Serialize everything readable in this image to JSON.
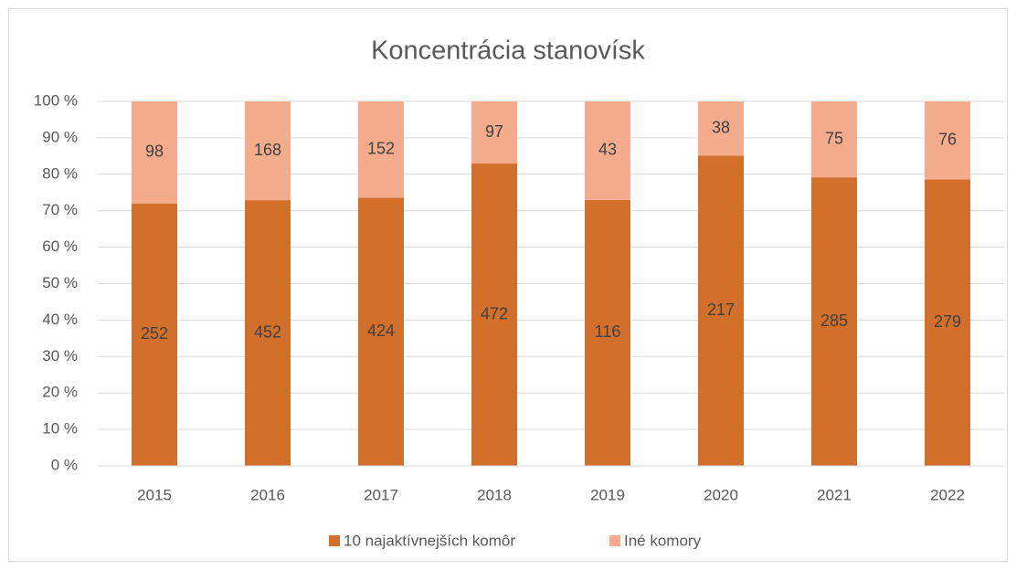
{
  "chart_data": {
    "type": "bar",
    "stacking": "percent",
    "title": "Koncentrácia stanovísk",
    "categories": [
      "2015",
      "2016",
      "2017",
      "2018",
      "2019",
      "2020",
      "2021",
      "2022"
    ],
    "series": [
      {
        "name": "10 najaktívnejších komôr",
        "color": "#d2702b",
        "values": [
          252,
          452,
          424,
          472,
          116,
          217,
          285,
          279
        ]
      },
      {
        "name": "Iné komory",
        "color": "#f4ac8d",
        "values": [
          98,
          168,
          152,
          97,
          43,
          38,
          75,
          76
        ]
      }
    ],
    "ylim": [
      0,
      100
    ],
    "yticks": [
      {
        "value": 0,
        "label": "0 %"
      },
      {
        "value": 10,
        "label": "10 %"
      },
      {
        "value": 20,
        "label": "20 %"
      },
      {
        "value": 30,
        "label": "30 %"
      },
      {
        "value": 40,
        "label": "40 %"
      },
      {
        "value": 50,
        "label": "50 %"
      },
      {
        "value": 60,
        "label": "60 %"
      },
      {
        "value": 70,
        "label": "70 %"
      },
      {
        "value": 80,
        "label": "80 %"
      },
      {
        "value": 90,
        "label": "90 %"
      },
      {
        "value": 100,
        "label": "100 %"
      }
    ],
    "grid": true,
    "legend": "bottom"
  }
}
